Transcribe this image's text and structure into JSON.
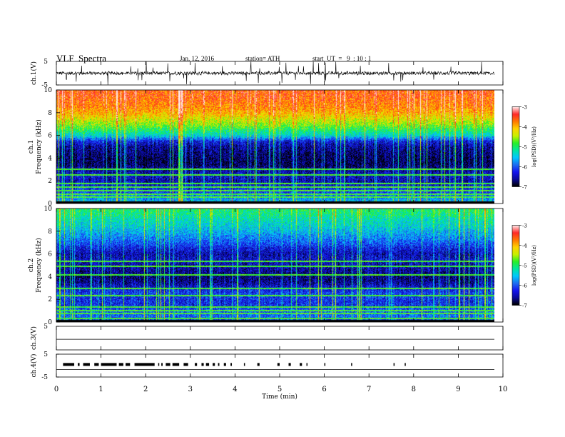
{
  "header": {
    "title": "VLF  Spectra",
    "date": "Jan. 12, 2016",
    "station": "station= ATH",
    "start": "start  UT  =   9  : 10 : 1"
  },
  "colors": {
    "colormap": [
      "#000000",
      "#0a0a9a",
      "#1414f0",
      "#1e6ef0",
      "#00c8ff",
      "#00e6a0",
      "#28f028",
      "#c8f000",
      "#ffd200",
      "#ff7800",
      "#ff2828",
      "#ffe6e6"
    ],
    "trace": "#000000",
    "digital": "#000000"
  },
  "chart_data": [
    {
      "type": "line",
      "panel": "ch1-waveform",
      "ylabel": "ch.1(V)",
      "ylim": [
        -5,
        5
      ],
      "yticks": [
        "5",
        "-5"
      ],
      "xlim": [
        0,
        10
      ],
      "baseline": 0,
      "amplitude_typical": 0.8,
      "spike_max": 5
    },
    {
      "type": "heatmap",
      "panel": "ch1-spectrogram",
      "ylabel": "ch.1\nFrequency  (kHz)",
      "ylabel_lines": [
        "ch.1",
        "Frequency  (kHz)"
      ],
      "xlim": [
        0,
        9.8
      ],
      "ylim": [
        0,
        10
      ],
      "yticks": [
        "0",
        "2",
        "4",
        "6",
        "8",
        "10"
      ],
      "zlim": [
        -7,
        -3
      ],
      "zlabel": "log(PSD)(V²/Hz)",
      "zticks": [
        "-3",
        "-4",
        "-5",
        "-6",
        "-7"
      ],
      "profile": {
        "freq_khz": [
          0,
          0.5,
          1,
          1.5,
          2,
          2.5,
          3,
          3.5,
          4,
          4.5,
          5,
          5.5,
          6,
          6.5,
          7,
          7.5,
          8,
          8.5,
          9,
          9.5,
          10
        ],
        "log_psd": [
          -5.4,
          -5.8,
          -6.1,
          -6.3,
          -6.5,
          -6.4,
          -6.6,
          -6.8,
          -6.8,
          -6.7,
          -6.6,
          -6.3,
          -5.4,
          -5.0,
          -4.6,
          -4.3,
          -4.0,
          -3.8,
          -3.7,
          -3.6,
          -3.6
        ]
      },
      "lines_khz": [
        0.2,
        0.6,
        0.9,
        1.2,
        1.5,
        1.8,
        2.6,
        3.1
      ]
    },
    {
      "type": "heatmap",
      "panel": "ch2-spectrogram",
      "ylabel": "ch.2\nFrequency  (kHz)",
      "ylabel_lines": [
        "ch.2",
        "Frequency  (kHz)"
      ],
      "xlim": [
        0,
        9.8
      ],
      "ylim": [
        0,
        10
      ],
      "yticks": [
        "0",
        "2",
        "4",
        "6",
        "8",
        "10"
      ],
      "zlim": [
        -7,
        -3
      ],
      "zlabel": "log(PSD)(V²/Hz)",
      "zticks": [
        "-3",
        "-4",
        "-5",
        "-6",
        "-7"
      ],
      "profile": {
        "freq_khz": [
          0,
          0.5,
          1,
          1.5,
          2,
          2.5,
          3,
          3.5,
          4,
          4.5,
          5,
          5.5,
          6,
          6.5,
          7,
          7.5,
          8,
          8.5,
          9,
          9.5,
          10
        ],
        "log_psd": [
          -6.2,
          -5.9,
          -6.0,
          -6.2,
          -6.2,
          -6.1,
          -6.3,
          -6.6,
          -6.7,
          -6.6,
          -6.5,
          -6.4,
          -6.5,
          -6.3,
          -6.0,
          -5.8,
          -5.6,
          -5.4,
          -5.3,
          -5.1,
          -5.0
        ]
      },
      "lines_khz": [
        0.4,
        0.8,
        1.1,
        1.4,
        2.4,
        3.0,
        4.2,
        5.0,
        5.4
      ]
    },
    {
      "type": "line",
      "panel": "ch3-waveform",
      "ylabel": "ch.3(V)",
      "ylim": [
        -5,
        5
      ],
      "yticks": [
        "5"
      ],
      "xlim": [
        0,
        10
      ],
      "value": -0.5
    },
    {
      "type": "line",
      "panel": "ch4-waveform",
      "ylabel": "ch.4(V)",
      "ylim": [
        -5,
        5
      ],
      "yticks": [
        "5",
        "-5"
      ],
      "xlim": [
        0,
        10
      ],
      "baseline": -0.5,
      "pulse_level": 0.5,
      "pulse_intervals_min": [
        [
          0.15,
          0.4
        ],
        [
          0.48,
          0.52
        ],
        [
          0.6,
          0.75
        ],
        [
          0.85,
          0.95
        ],
        [
          1.0,
          1.35
        ],
        [
          1.4,
          1.5
        ],
        [
          1.55,
          1.65
        ],
        [
          1.75,
          2.2
        ],
        [
          2.28,
          2.3
        ],
        [
          2.35,
          2.38
        ],
        [
          2.45,
          2.55
        ],
        [
          2.6,
          2.75
        ],
        [
          2.85,
          2.95
        ],
        [
          3.1,
          3.15
        ],
        [
          3.25,
          3.3
        ],
        [
          3.35,
          3.42
        ],
        [
          3.5,
          3.55
        ],
        [
          3.62,
          3.65
        ],
        [
          3.75,
          3.8
        ],
        [
          3.9,
          3.93
        ],
        [
          4.2,
          4.22
        ],
        [
          4.5,
          4.55
        ],
        [
          4.95,
          5.0
        ],
        [
          5.2,
          5.25
        ],
        [
          5.45,
          5.5
        ],
        [
          5.6,
          5.62
        ],
        [
          6.0,
          6.02
        ],
        [
          6.6,
          6.62
        ],
        [
          7.55,
          7.57
        ],
        [
          7.8,
          7.82
        ]
      ]
    }
  ],
  "axes": {
    "xlabel": "Time  (min)",
    "xticks": [
      "0",
      "1",
      "2",
      "3",
      "4",
      "5",
      "6",
      "7",
      "8",
      "9",
      "10"
    ]
  }
}
